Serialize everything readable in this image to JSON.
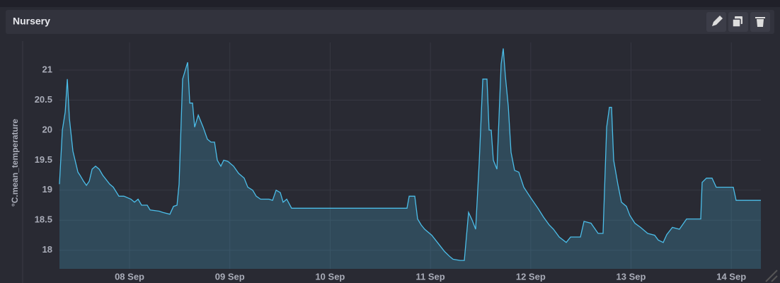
{
  "chart_data": {
    "type": "area",
    "title": "Nursery",
    "y_label": "°C.mean_temperature",
    "color": "#4bbde8",
    "grid": true,
    "xlim": [
      7.301,
      14.295
    ],
    "ylim": [
      17.69,
      21.46
    ],
    "yticks": [
      18,
      18.5,
      19,
      19.5,
      20,
      20.5,
      21
    ],
    "xticks": [
      {
        "value": 8,
        "label": "08 Sep"
      },
      {
        "value": 9,
        "label": "09 Sep"
      },
      {
        "value": 10,
        "label": "10 Sep"
      },
      {
        "value": 11,
        "label": "11 Sep"
      },
      {
        "value": 12,
        "label": "12 Sep"
      },
      {
        "value": 13,
        "label": "13 Sep"
      },
      {
        "value": 14,
        "label": "14 Sep"
      }
    ],
    "x": [
      7.301,
      7.33,
      7.358,
      7.379,
      7.4,
      7.435,
      7.485,
      7.506,
      7.541,
      7.57,
      7.598,
      7.626,
      7.661,
      7.697,
      7.732,
      7.802,
      7.838,
      7.894,
      7.944,
      8.014,
      8.049,
      8.085,
      8.12,
      8.176,
      8.205,
      8.296,
      8.332,
      8.402,
      8.438,
      8.473,
      8.494,
      8.529,
      8.579,
      8.6,
      8.628,
      8.649,
      8.685,
      8.734,
      8.776,
      8.812,
      8.847,
      8.875,
      8.91,
      8.939,
      8.981,
      9.037,
      9.087,
      9.143,
      9.179,
      9.228,
      9.263,
      9.306,
      9.39,
      9.426,
      9.461,
      9.503,
      9.531,
      9.567,
      9.616,
      10.766,
      10.788,
      10.844,
      10.872,
      10.908,
      10.943,
      11.013,
      11.084,
      11.14,
      11.19,
      11.225,
      11.296,
      11.338,
      11.38,
      11.416,
      11.451,
      11.486,
      11.522,
      11.564,
      11.585,
      11.606,
      11.627,
      11.663,
      11.705,
      11.726,
      11.747,
      11.776,
      11.804,
      11.839,
      11.881,
      11.931,
      12.001,
      12.072,
      12.128,
      12.185,
      12.227,
      12.284,
      12.354,
      12.397,
      12.453,
      12.495,
      12.531,
      12.601,
      12.672,
      12.721,
      12.757,
      12.785,
      12.806,
      12.827,
      12.869,
      12.905,
      12.954,
      12.989,
      13.039,
      13.095,
      13.166,
      13.236,
      13.272,
      13.321,
      13.356,
      13.413,
      13.483,
      13.554,
      13.695,
      13.709,
      13.752,
      13.808,
      13.85,
      14.02,
      14.048,
      14.295
    ],
    "values": [
      19.1,
      20.0,
      20.3,
      20.85,
      20.2,
      19.65,
      19.3,
      19.25,
      19.15,
      19.08,
      19.15,
      19.35,
      19.4,
      19.35,
      19.25,
      19.1,
      19.05,
      18.9,
      18.9,
      18.85,
      18.8,
      18.85,
      18.75,
      18.75,
      18.67,
      18.65,
      18.63,
      18.6,
      18.73,
      18.75,
      19.1,
      20.85,
      21.13,
      20.45,
      20.45,
      20.05,
      20.25,
      20.05,
      19.85,
      19.8,
      19.8,
      19.5,
      19.4,
      19.5,
      19.48,
      19.4,
      19.28,
      19.2,
      19.05,
      19.0,
      18.9,
      18.85,
      18.85,
      18.83,
      19.0,
      18.96,
      18.8,
      18.85,
      18.7,
      18.7,
      18.9,
      18.9,
      18.52,
      18.42,
      18.35,
      18.25,
      18.1,
      17.98,
      17.9,
      17.85,
      17.83,
      17.83,
      18.63,
      18.5,
      18.35,
      19.45,
      20.85,
      20.85,
      20.0,
      20.0,
      19.5,
      19.35,
      21.1,
      21.36,
      20.9,
      20.4,
      19.63,
      19.33,
      19.3,
      19.05,
      18.87,
      18.7,
      18.55,
      18.42,
      18.35,
      18.22,
      18.13,
      18.22,
      18.22,
      18.22,
      18.48,
      18.45,
      18.28,
      18.28,
      20.05,
      20.38,
      20.38,
      19.5,
      19.1,
      18.8,
      18.73,
      18.58,
      18.45,
      18.38,
      18.28,
      18.25,
      18.17,
      18.13,
      18.26,
      18.38,
      18.35,
      18.52,
      18.52,
      19.13,
      19.2,
      19.2,
      19.05,
      19.05,
      18.83,
      18.83
    ]
  }
}
